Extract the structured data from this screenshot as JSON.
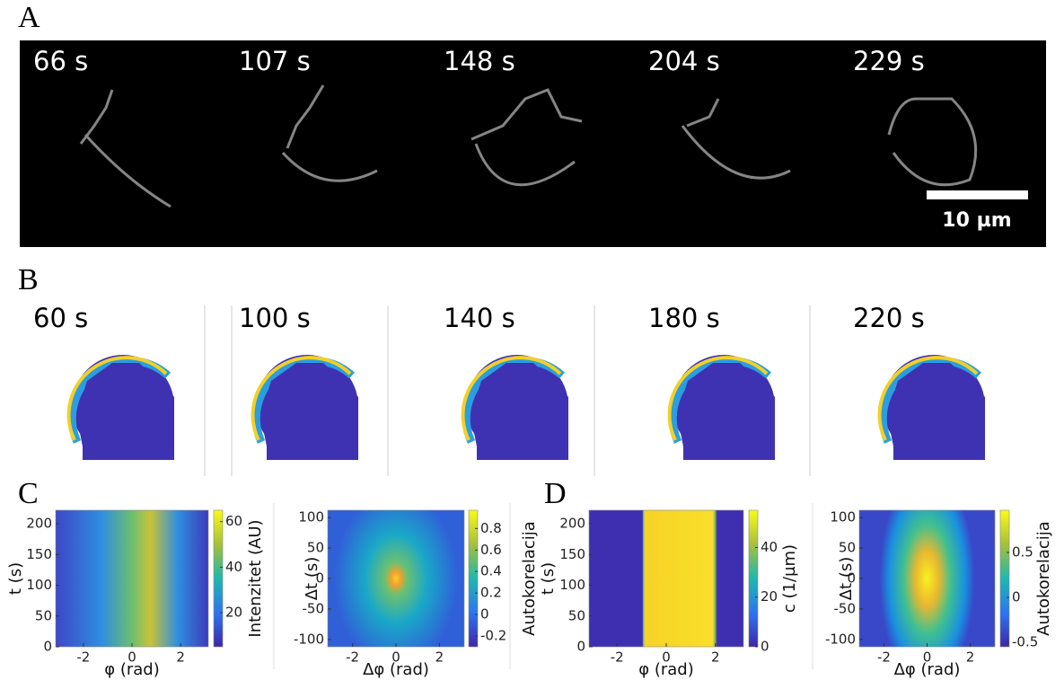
{
  "panels": {
    "A": {
      "label": "A",
      "times": [
        "66 s",
        "107 s",
        "148 s",
        "204 s",
        "229 s"
      ],
      "scale_bar": "10 µm"
    },
    "B": {
      "label": "B",
      "times": [
        "60 s",
        "100 s",
        "140 s",
        "180 s",
        "220 s"
      ]
    },
    "C": {
      "label": "C"
    },
    "D": {
      "label": "D"
    }
  },
  "chart_data": [
    {
      "type": "heatmap",
      "xlabel": "φ (rad)",
      "ylabel": "t (s)",
      "colorbar_label": "Intenzitet (AU)",
      "colormap": "parula",
      "xlim": [
        -3.1416,
        3.1416
      ],
      "ylim": [
        0,
        222
      ],
      "xticks": [
        -2,
        0,
        2
      ],
      "yticks": [
        0,
        50,
        100,
        150,
        200
      ],
      "clim": [
        5,
        65
      ],
      "cticks": [
        20,
        40,
        60
      ]
    },
    {
      "type": "heatmap",
      "xlabel": "Δφ (rad)",
      "ylabel": "Δt (s)",
      "colorbar_label": "Autokorelacija",
      "colormap": "parula",
      "xlim": [
        -3.1416,
        3.1416
      ],
      "ylim": [
        -112,
        112
      ],
      "xticks": [
        -2,
        0,
        2
      ],
      "yticks": [
        -100,
        -50,
        0,
        50,
        100
      ],
      "clim": [
        -0.3,
        0.97
      ],
      "cticks": [
        -0.2,
        0,
        0.2,
        0.4,
        0.6,
        0.8
      ]
    },
    {
      "type": "heatmap",
      "xlabel": "φ (rad)",
      "ylabel": "t (s)",
      "colorbar_label": "c (1/µm)",
      "colormap": "parula",
      "xlim": [
        -3.1416,
        3.1416
      ],
      "ylim": [
        0,
        222
      ],
      "xticks": [
        -2,
        0,
        2
      ],
      "yticks": [
        0,
        50,
        100,
        150,
        200
      ],
      "clim": [
        0,
        55
      ],
      "cticks": [
        0,
        20,
        40
      ]
    },
    {
      "type": "heatmap",
      "xlabel": "Δφ (rad)",
      "ylabel": "Δt (s)",
      "colorbar_label": "Autokorelacija",
      "colormap": "parula",
      "xlim": [
        -3.1416,
        3.1416
      ],
      "ylim": [
        -112,
        112
      ],
      "xticks": [
        -2,
        0,
        2
      ],
      "yticks": [
        -100,
        -50,
        0,
        50,
        100
      ],
      "clim": [
        -0.55,
        0.97
      ],
      "cticks": [
        -0.5,
        0,
        0.5
      ]
    }
  ]
}
